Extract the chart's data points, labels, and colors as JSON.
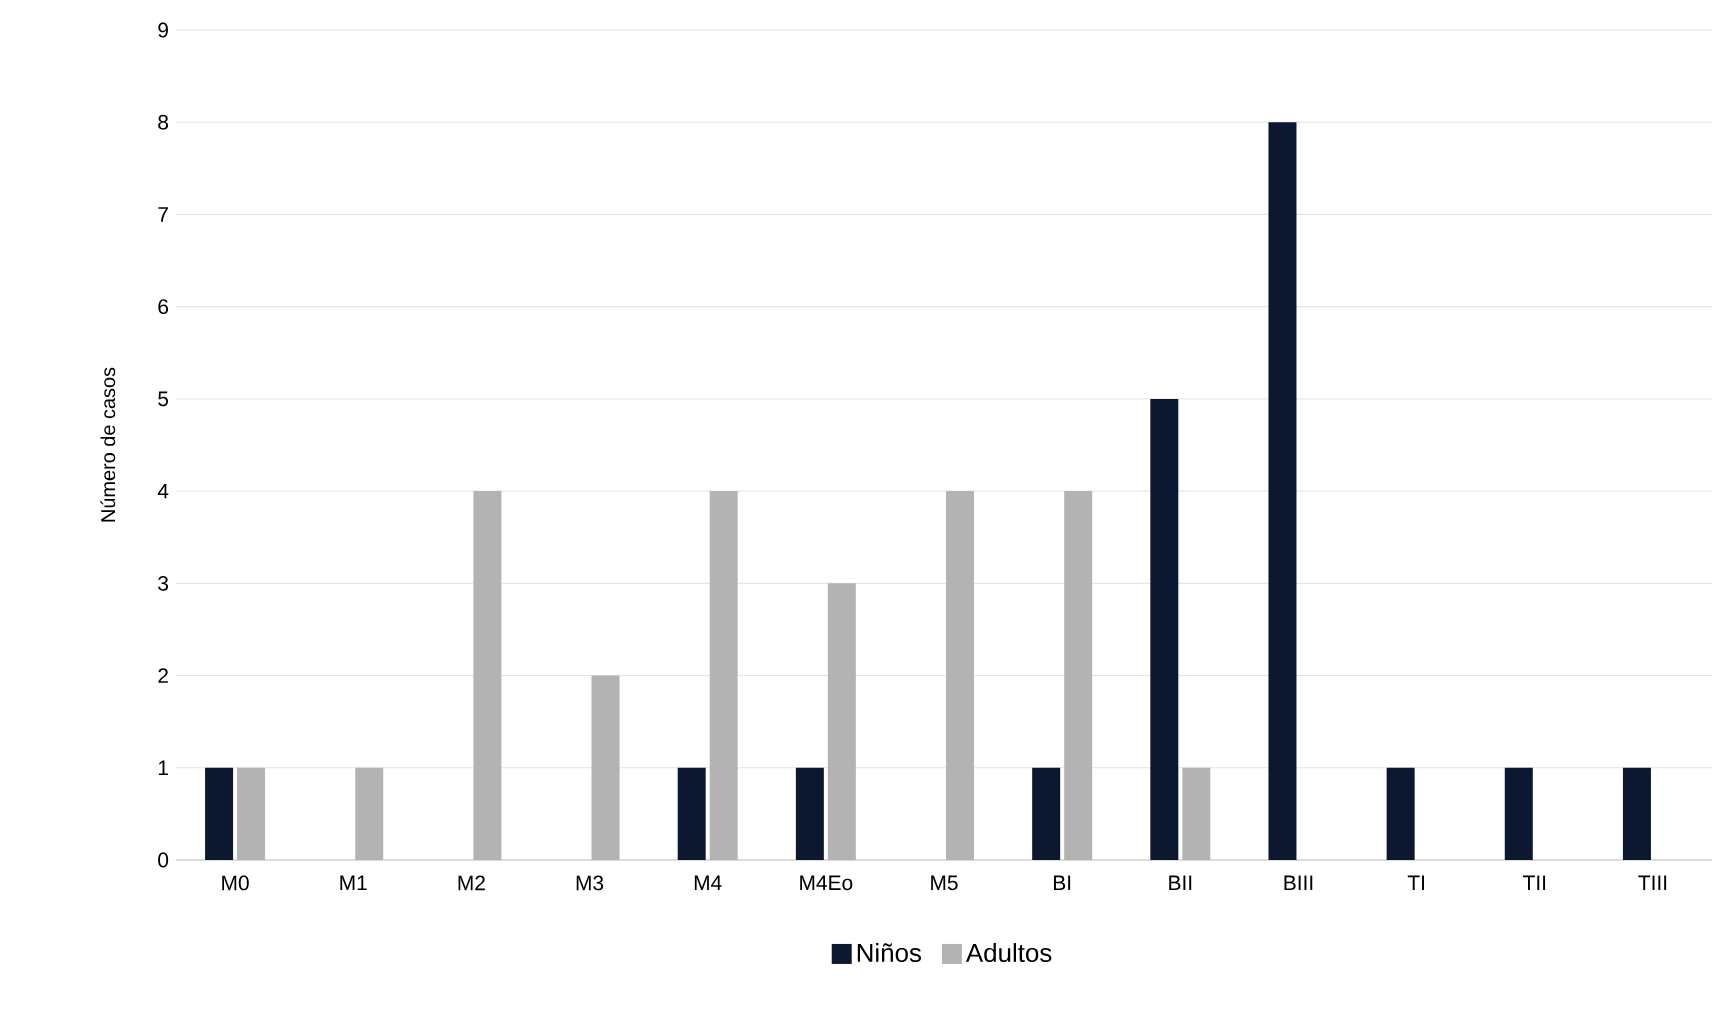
{
  "chart_data": {
    "type": "bar",
    "ylabel": "Número de casos",
    "categories": [
      "M0",
      "M1",
      "M2",
      "M3",
      "M4",
      "M4Eo",
      "M5",
      "BI",
      "BII",
      "BIII",
      "TI",
      "TII",
      "TIII"
    ],
    "series": [
      {
        "name": "Niños",
        "color": "#0c1730",
        "values": [
          1,
          0,
          0,
          0,
          1,
          1,
          0,
          1,
          5,
          8,
          1,
          1,
          1
        ]
      },
      {
        "name": "Adultos",
        "color": "#b3b3b3",
        "values": [
          1,
          1,
          4,
          2,
          4,
          3,
          4,
          4,
          1,
          0,
          0,
          0,
          0
        ]
      }
    ],
    "ylim": [
      0,
      9
    ],
    "yticks": [
      0,
      1,
      2,
      3,
      4,
      5,
      6,
      7,
      8,
      9
    ],
    "grid": "y",
    "legend": "bottom"
  }
}
